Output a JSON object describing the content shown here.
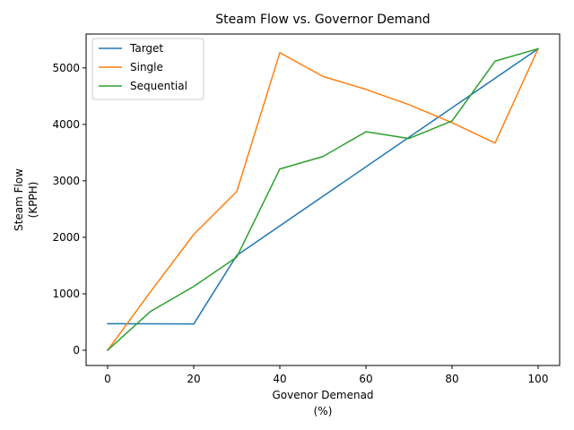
{
  "chart_data": {
    "type": "line",
    "title": "Steam Flow vs. Governor Demand",
    "xlabel": [
      "Govenor Demenad",
      "(%)"
    ],
    "ylabel": [
      "Steam Flow",
      "(KPPH)"
    ],
    "xlim": [
      -5,
      105
    ],
    "ylim": [
      -270,
      5600
    ],
    "xticks": [
      0,
      20,
      40,
      60,
      80,
      100
    ],
    "yticks": [
      0,
      1000,
      2000,
      3000,
      4000,
      5000
    ],
    "grid": false,
    "legend": "top-left",
    "x": [
      0,
      10,
      20,
      30,
      40,
      50,
      60,
      70,
      80,
      90,
      100
    ],
    "series": [
      {
        "name": "Target",
        "color": "#1f77b4",
        "x": [
          0,
          20,
          30,
          100
        ],
        "values": [
          470,
          465,
          1680,
          5340
        ]
      },
      {
        "name": "Single",
        "color": "#ff7f0e",
        "x": [
          0,
          10,
          20,
          30,
          40,
          50,
          60,
          70,
          80,
          90,
          100
        ],
        "values": [
          0,
          1040,
          2050,
          2810,
          5270,
          4850,
          4620,
          4350,
          4030,
          3670,
          5340
        ]
      },
      {
        "name": "Sequential",
        "color": "#2ca02c",
        "x": [
          0,
          10,
          20,
          30,
          40,
          50,
          60,
          70,
          80,
          90,
          100
        ],
        "values": [
          0,
          690,
          1130,
          1650,
          3210,
          3430,
          3870,
          3750,
          4060,
          5120,
          5340
        ]
      }
    ]
  }
}
